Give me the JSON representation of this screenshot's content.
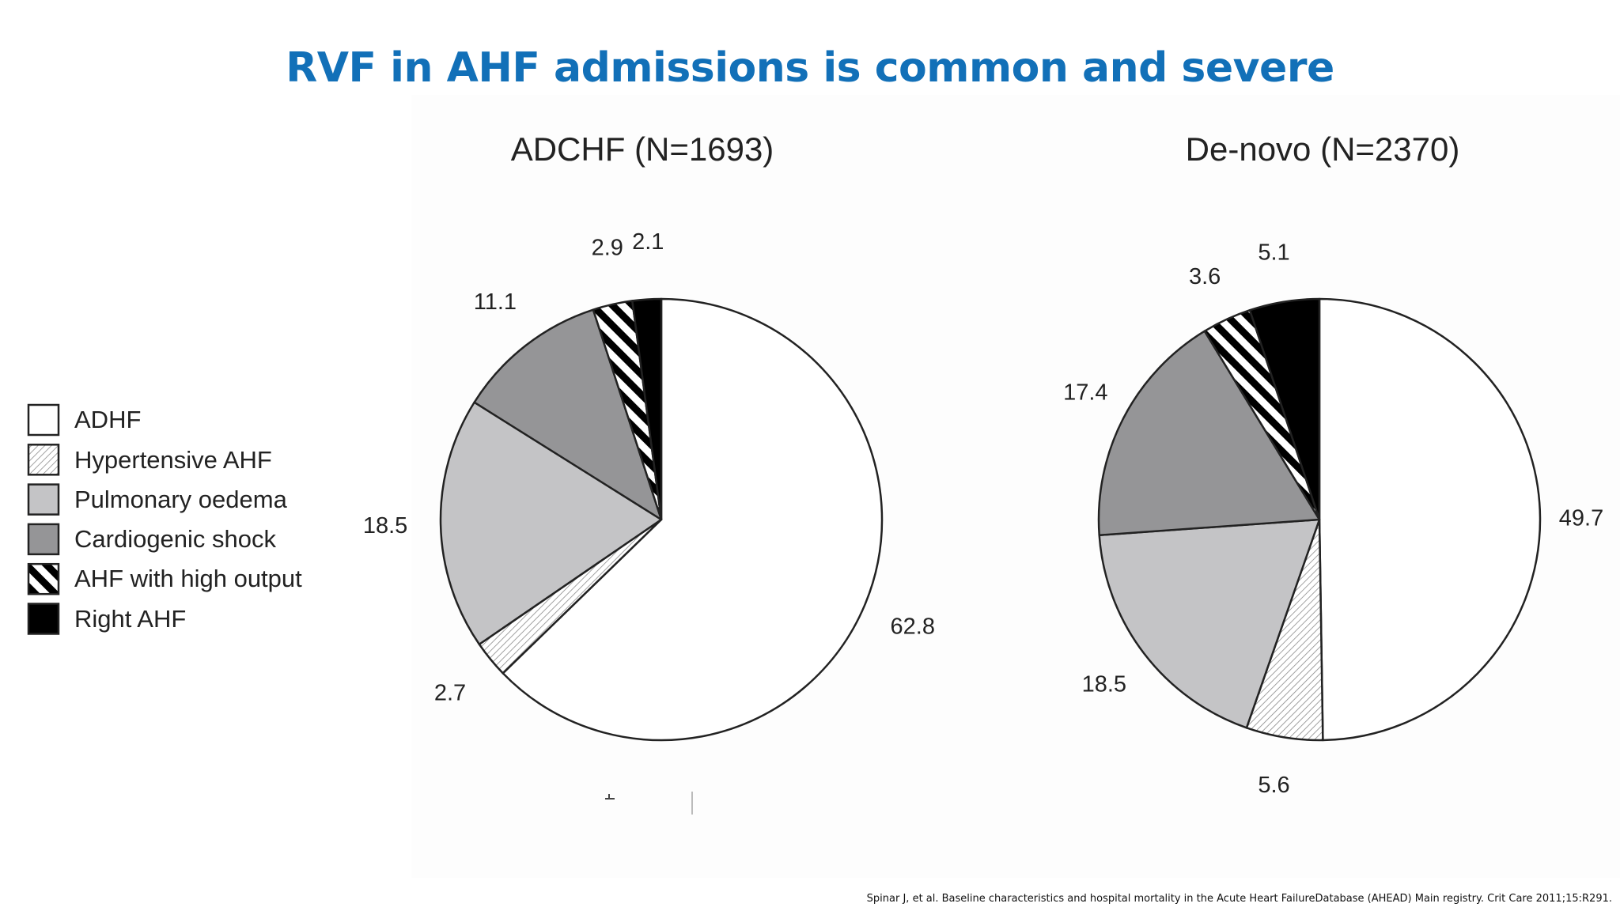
{
  "slide": {
    "title": "RVF in AHF admissions is common and severe",
    "citation": "Spinar J, et al. Baseline characteristics and hospital mortality in the Acute Heart FailureDatabase (AHEAD) Main registry. Crit Care 2011;15:R291."
  },
  "legend": {
    "items": [
      {
        "label": "ADHF",
        "pattern": "white"
      },
      {
        "label": "Hypertensive AHF",
        "pattern": "fine-hatch"
      },
      {
        "label": "Pulmonary oedema",
        "pattern": "light-gray"
      },
      {
        "label": "Cardiogenic shock",
        "pattern": "dark-gray"
      },
      {
        "label": "AHF with high output",
        "pattern": "bold-stripes"
      },
      {
        "label": "Right AHF",
        "pattern": "black"
      }
    ]
  },
  "chart_data": [
    {
      "type": "pie",
      "title": "ADCHF (N=1693)",
      "categories": [
        "ADHF",
        "Hypertensive AHF",
        "Pulmonary oedema",
        "Cardiogenic shock",
        "AHF with high output",
        "Right AHF"
      ],
      "values": [
        62.8,
        2.7,
        18.5,
        11.1,
        2.9,
        2.1
      ],
      "labels": [
        "62.8",
        "2.7",
        "18.5",
        "11.1",
        "2.9",
        "2.1"
      ],
      "start": "12 o'clock",
      "direction": "clockwise"
    },
    {
      "type": "pie",
      "title": "De-novo (N=2370)",
      "categories": [
        "ADHF",
        "Hypertensive AHF",
        "Pulmonary oedema",
        "Cardiogenic shock",
        "AHF with high output",
        "Right AHF"
      ],
      "values": [
        49.7,
        5.6,
        18.5,
        17.4,
        3.6,
        5.1
      ],
      "labels": [
        "49.7",
        "5.6",
        "18.5",
        "17.4",
        "3.6",
        "5.1"
      ],
      "start": "12 o'clock",
      "direction": "clockwise"
    }
  ],
  "colors": {
    "title": "#1270b8",
    "white": "#ffffff",
    "light-gray": "#c4c4c6",
    "dark-gray": "#959597",
    "black": "#000000",
    "outline": "#222222"
  }
}
